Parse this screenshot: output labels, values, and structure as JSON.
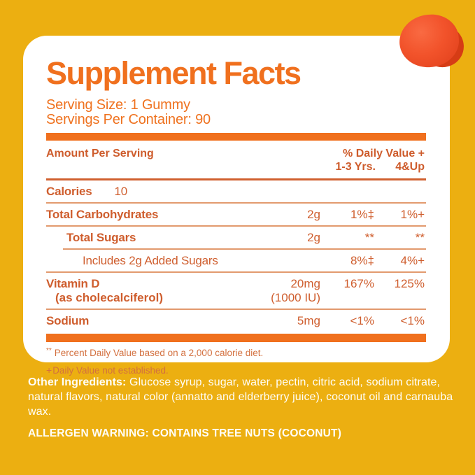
{
  "colors": {
    "background_yellow": "#ECAF11",
    "card_white": "#FFFFFF",
    "accent_orange": "#F0701E",
    "table_text_orange": "#CF5E2E",
    "gummy_red_orange": "#E74721",
    "bottom_text_white": "#FFFEF8"
  },
  "panel": {
    "title": "Supplement Facts",
    "serving_size": "Serving Size: 1 Gummy",
    "servings_per_container": "Servings Per Container: 90",
    "header": {
      "amount_label": "Amount Per Serving",
      "dv_label": "% Daily Value +",
      "col1": "1-3 Yrs.",
      "col2": "4&Up"
    },
    "rows": [
      {
        "name": "Calories",
        "inline_value": "10"
      },
      {
        "name": "Total Carbohydrates",
        "amount": "2g",
        "dv1": "1%‡",
        "dv2": "1%+"
      },
      {
        "name": "Total Sugars",
        "amount": "2g",
        "dv1": "**",
        "dv2": "**"
      },
      {
        "name": "Includes 2g Added Sugars",
        "amount": "",
        "dv1": "8%‡",
        "dv2": "4%+"
      },
      {
        "name": "Vitamin D",
        "name_sub": "(as cholecalciferol)",
        "amount": "20mg",
        "amount_sub": "(1000 IU)",
        "dv1": "167%",
        "dv2": "125%"
      },
      {
        "name": "Sodium",
        "amount": "5mg",
        "dv1": "<1%",
        "dv2": "<1%"
      }
    ],
    "footnote_dv": {
      "symbol": "**",
      "text": "Percent Daily Value based on a 2,000 calorie diet."
    },
    "footnote_plus": {
      "symbol": "+",
      "text": "Daily Value not established."
    }
  },
  "below": {
    "other_ingredients_label": "Other Ingredients:",
    "other_ingredients_text": "Glucose syrup, sugar, water, pectin, citric acid, sodium citrate, natural flavors, natural color (annatto and elderberry juice), coconut oil and carnauba wax.",
    "allergen_warning": "ALLERGEN WARNING: CONTAINS TREE NUTS (COCONUT)"
  },
  "decor": {
    "gummy": "orange gummy drop illustration"
  }
}
